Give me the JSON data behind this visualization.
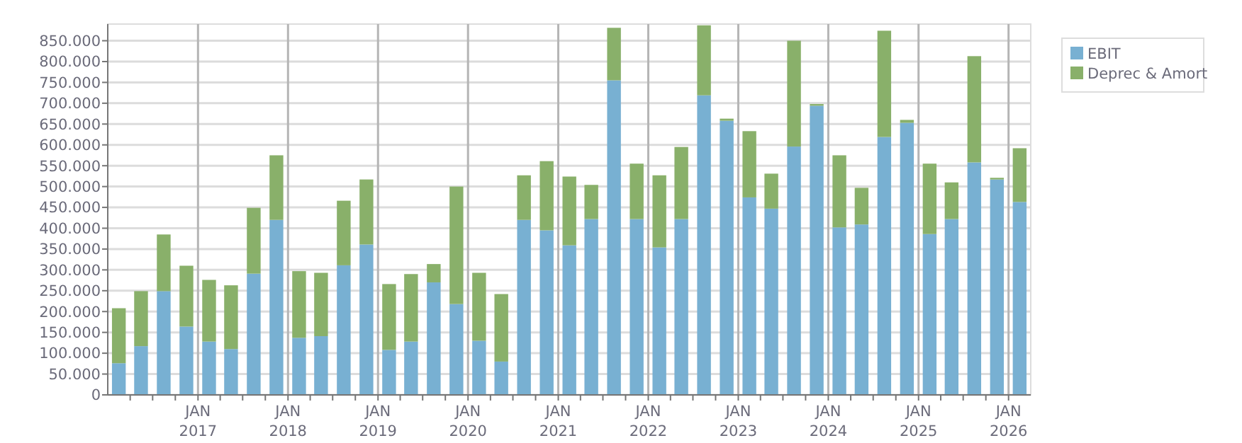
{
  "chart_data": {
    "type": "bar",
    "stacked": true,
    "x": [
      "2016-02-15",
      "2016-05-15",
      "2016-08-15",
      "2016-11-15",
      "2017-02-15",
      "2017-05-15",
      "2017-08-15",
      "2017-11-15",
      "2018-02-15",
      "2018-05-15",
      "2018-08-15",
      "2018-11-15",
      "2019-02-15",
      "2019-05-15",
      "2019-08-15",
      "2019-11-15",
      "2020-02-15",
      "2020-05-15",
      "2020-08-15",
      "2020-11-15",
      "2021-02-15",
      "2021-05-15",
      "2021-08-15",
      "2021-11-15",
      "2022-02-15",
      "2022-05-15",
      "2022-08-15",
      "2022-11-15",
      "2023-02-15",
      "2023-05-15",
      "2023-08-15",
      "2023-11-15",
      "2024-02-15",
      "2024-05-15",
      "2024-08-15",
      "2024-11-15",
      "2025-02-15",
      "2025-05-15",
      "2025-08-15",
      "2025-11-15",
      "2026-02-15"
    ],
    "series": [
      {
        "name": "EBIT",
        "color": "#78b0d2",
        "values": [
          76000,
          117000,
          249000,
          164000,
          128000,
          110000,
          291000,
          420000,
          137000,
          141000,
          311000,
          361000,
          108000,
          128000,
          270000,
          218000,
          130000,
          80000,
          420000,
          395000,
          359000,
          422000,
          755000,
          422000,
          354000,
          422000,
          719000,
          658000,
          474000,
          447000,
          596000,
          694000,
          402000,
          409000,
          619000,
          653000,
          386000,
          422000,
          558000,
          517000,
          463000
        ]
      },
      {
        "name": "Deprec & Amort",
        "color": "#89b06a",
        "values": [
          132000,
          132000,
          136000,
          146000,
          148000,
          153000,
          158000,
          155000,
          160000,
          152000,
          155000,
          156000,
          158000,
          162000,
          44000,
          282000,
          163000,
          162000,
          107000,
          166000,
          165000,
          82000,
          126000,
          133000,
          173000,
          173000,
          168000,
          5000,
          159000,
          84000,
          254000,
          4000,
          173000,
          88000,
          255000,
          7000,
          169000,
          88000,
          255000,
          4000,
          129000
        ]
      }
    ],
    "xlim": [
      "2016-01-01",
      "2026-04-01"
    ],
    "xticks": [
      {
        "value": "2016-04-01",
        "label": null
      },
      {
        "value": "2016-07-01",
        "label": null
      },
      {
        "value": "2016-10-01",
        "label": null
      },
      {
        "value": "2017-01-01",
        "label": "JAN 2017"
      },
      {
        "value": "2017-04-01",
        "label": null
      },
      {
        "value": "2017-07-01",
        "label": null
      },
      {
        "value": "2017-10-01",
        "label": null
      },
      {
        "value": "2018-01-01",
        "label": "JAN 2018"
      },
      {
        "value": "2018-04-01",
        "label": null
      },
      {
        "value": "2018-07-01",
        "label": null
      },
      {
        "value": "2018-10-01",
        "label": null
      },
      {
        "value": "2019-01-01",
        "label": "JAN 2019"
      },
      {
        "value": "2019-04-01",
        "label": null
      },
      {
        "value": "2019-07-01",
        "label": null
      },
      {
        "value": "2019-10-01",
        "label": null
      },
      {
        "value": "2020-01-01",
        "label": "JAN 2020"
      },
      {
        "value": "2020-04-01",
        "label": null
      },
      {
        "value": "2020-07-01",
        "label": null
      },
      {
        "value": "2020-10-01",
        "label": null
      },
      {
        "value": "2021-01-01",
        "label": "JAN 2021"
      },
      {
        "value": "2021-04-01",
        "label": null
      },
      {
        "value": "2021-07-01",
        "label": null
      },
      {
        "value": "2021-10-01",
        "label": null
      },
      {
        "value": "2022-01-01",
        "label": "JAN 2022"
      },
      {
        "value": "2022-04-01",
        "label": null
      },
      {
        "value": "2022-07-01",
        "label": null
      },
      {
        "value": "2022-10-01",
        "label": null
      },
      {
        "value": "2023-01-01",
        "label": "JAN 2023"
      },
      {
        "value": "2023-04-01",
        "label": null
      },
      {
        "value": "2023-07-01",
        "label": null
      },
      {
        "value": "2023-10-01",
        "label": null
      },
      {
        "value": "2024-01-01",
        "label": "JAN 2024"
      },
      {
        "value": "2024-04-01",
        "label": null
      },
      {
        "value": "2024-07-01",
        "label": null
      },
      {
        "value": "2024-10-01",
        "label": null
      },
      {
        "value": "2025-01-01",
        "label": "JAN 2025"
      },
      {
        "value": "2025-04-01",
        "label": null
      },
      {
        "value": "2025-07-01",
        "label": null
      },
      {
        "value": "2025-10-01",
        "label": null
      },
      {
        "value": "2026-01-01",
        "label": "JAN 2026"
      }
    ],
    "ylim": [
      0,
      890000
    ],
    "yticks": [
      {
        "value": 0,
        "label": "0"
      },
      {
        "value": 50000,
        "label": "50.000"
      },
      {
        "value": 100000,
        "label": "100.000"
      },
      {
        "value": 150000,
        "label": "150.000"
      },
      {
        "value": 200000,
        "label": "200.000"
      },
      {
        "value": 250000,
        "label": "250.000"
      },
      {
        "value": 300000,
        "label": "300.000"
      },
      {
        "value": 350000,
        "label": "350.000"
      },
      {
        "value": 400000,
        "label": "400.000"
      },
      {
        "value": 450000,
        "label": "450.000"
      },
      {
        "value": 500000,
        "label": "500.000"
      },
      {
        "value": 550000,
        "label": "550.000"
      },
      {
        "value": 600000,
        "label": "600.000"
      },
      {
        "value": 650000,
        "label": "650.000"
      },
      {
        "value": 700000,
        "label": "700.000"
      },
      {
        "value": 750000,
        "label": "750.000"
      },
      {
        "value": 800000,
        "label": "800.000"
      },
      {
        "value": 850000,
        "label": "850.000"
      }
    ],
    "grid": true,
    "legend": "top right"
  }
}
